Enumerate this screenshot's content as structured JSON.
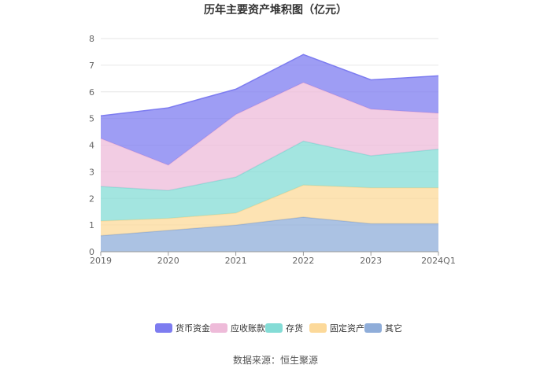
{
  "chart_data": {
    "type": "area",
    "stacked": true,
    "title": "历年主要资产堆积图（亿元）",
    "categories": [
      "2019",
      "2020",
      "2021",
      "2022",
      "2023",
      "2024Q1"
    ],
    "ylim": [
      0,
      8
    ],
    "yticks": [
      "0",
      "1",
      "2",
      "3",
      "4",
      "5",
      "6",
      "7",
      "8"
    ],
    "grid": true,
    "legend_position": "bottom",
    "series": [
      {
        "name": "其它",
        "color": "#8fadd9",
        "values": [
          0.6,
          0.8,
          1.0,
          1.3,
          1.05,
          1.05
        ]
      },
      {
        "name": "固定资产",
        "color": "#fcd99a",
        "values": [
          0.55,
          0.45,
          0.45,
          1.2,
          1.35,
          1.35
        ]
      },
      {
        "name": "存货",
        "color": "#84dcd6",
        "values": [
          1.3,
          1.05,
          1.35,
          1.65,
          1.2,
          1.45
        ]
      },
      {
        "name": "应收账款",
        "color": "#eebbd9",
        "values": [
          1.8,
          0.95,
          2.35,
          2.2,
          1.75,
          1.35
        ]
      },
      {
        "name": "货币资金",
        "color": "#7d7cf0",
        "values": [
          0.85,
          2.15,
          0.95,
          1.05,
          1.1,
          1.4
        ]
      }
    ],
    "legend_order": [
      "货币资金",
      "应收账款",
      "存货",
      "固定资产",
      "其它"
    ]
  },
  "source": "数据来源：恒生聚源"
}
